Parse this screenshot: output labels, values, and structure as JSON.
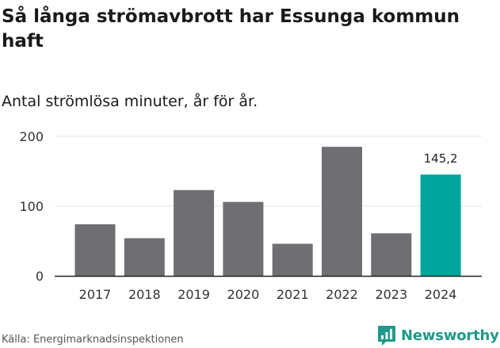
{
  "chart_data": {
    "type": "bar",
    "title": "Så långa strömavbrott har Essunga kommun haft",
    "subtitle": "Antal strömlösa minuter, år för år.",
    "categories": [
      "2017",
      "2018",
      "2019",
      "2020",
      "2021",
      "2022",
      "2023",
      "2024"
    ],
    "values": [
      74,
      54,
      123,
      106,
      46,
      185,
      61,
      145.2
    ],
    "highlight_index": 7,
    "highlight_label": "145,2",
    "ylim": [
      0,
      200
    ],
    "yticks": [
      "0",
      "100",
      "200"
    ],
    "grid": true,
    "colors": {
      "bar": "#6f6e73",
      "highlight": "#00a69c",
      "grid": "#e3e3e3",
      "axis": "#222222"
    }
  },
  "footer": {
    "source": "Källa: Energimarknadsinspektionen",
    "brand": "Newsworthy",
    "brand_icon": "newsworthy-logo-icon",
    "brand_color": "#1e9a8a"
  }
}
